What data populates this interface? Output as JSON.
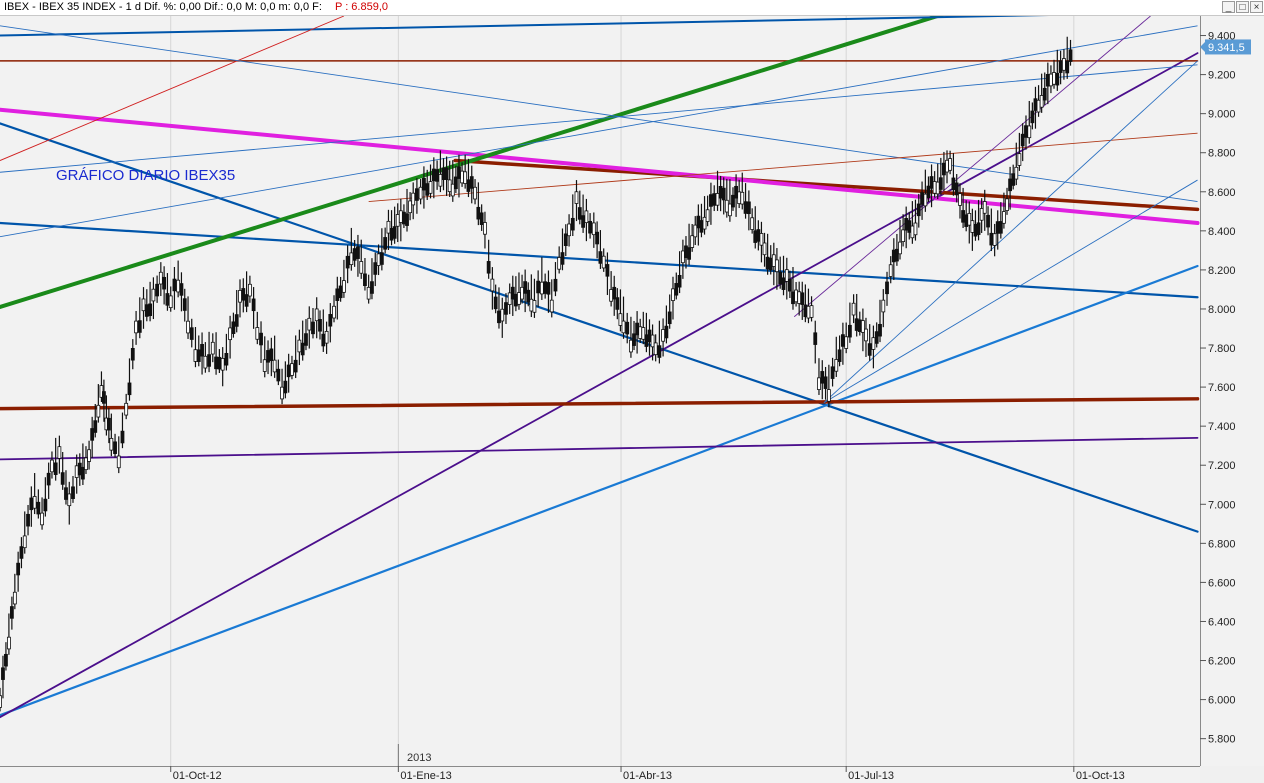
{
  "header": {
    "title": "IBEX - IBEX 35 INDEX - 1 d Dif. %: 0,00  Dif.: 0,0  M: 0,0  m: 0,0  F:",
    "price_label": "P : 6.859,0",
    "buttons": [
      "_",
      "□",
      "×"
    ]
  },
  "chart_data": {
    "type": "candlestick",
    "title": "GRÁFICO DIARIO IBEX35",
    "last_price_label": "9.341,5",
    "last_price": 9341.5,
    "y_ticks": [
      5800,
      6000,
      6200,
      6400,
      6600,
      6800,
      7000,
      7200,
      7400,
      7600,
      7800,
      8000,
      8200,
      8400,
      8600,
      8800,
      9000,
      9200,
      9400
    ],
    "y_tick_labels": [
      "5.800",
      "6.000",
      "6.200",
      "6.400",
      "6.600",
      "6.800",
      "7.000",
      "7.200",
      "7.400",
      "7.600",
      "7.800",
      "8.000",
      "8.200",
      "8.400",
      "8.600",
      "8.800",
      "9.000",
      "9.200",
      "9.400"
    ],
    "ylim": [
      5660,
      9500
    ],
    "x_ticks": [
      {
        "label": "01-Oct-12",
        "date": "2012-10-01"
      },
      {
        "label": "01-Ene-13",
        "date": "2013-01-01"
      },
      {
        "label": "01-Abr-13",
        "date": "2013-04-01"
      },
      {
        "label": "01-Jul-13",
        "date": "2013-07-01"
      },
      {
        "label": "01-Oct-13",
        "date": "2013-10-01"
      }
    ],
    "year_label": "2013",
    "xlim": [
      "2012-07-24",
      "2013-11-21"
    ],
    "series": [
      {
        "values": [
          [
            "2012-07-24",
            6000
          ],
          [
            "2012-07-30",
            6550
          ],
          [
            "2012-08-03",
            6850
          ],
          [
            "2012-08-07",
            7050
          ],
          [
            "2012-08-10",
            6950
          ],
          [
            "2012-08-14",
            7200
          ],
          [
            "2012-08-17",
            7250
          ],
          [
            "2012-08-21",
            7000
          ],
          [
            "2012-08-24",
            7150
          ],
          [
            "2012-08-29",
            7250
          ],
          [
            "2012-09-03",
            7600
          ],
          [
            "2012-09-05",
            7450
          ],
          [
            "2012-09-07",
            7350
          ],
          [
            "2012-09-10",
            7250
          ],
          [
            "2012-09-13",
            7500
          ],
          [
            "2012-09-17",
            7900
          ],
          [
            "2012-09-20",
            8000
          ],
          [
            "2012-09-24",
            8050
          ],
          [
            "2012-09-27",
            8150
          ],
          [
            "2012-10-01",
            8050
          ],
          [
            "2012-10-04",
            8150
          ],
          [
            "2012-10-08",
            7950
          ],
          [
            "2012-10-11",
            7800
          ],
          [
            "2012-10-15",
            7750
          ],
          [
            "2012-10-18",
            7800
          ],
          [
            "2012-10-22",
            7700
          ],
          [
            "2012-10-25",
            7850
          ],
          [
            "2012-10-29",
            8050
          ],
          [
            "2012-11-02",
            8100
          ],
          [
            "2012-11-05",
            7900
          ],
          [
            "2012-11-08",
            7750
          ],
          [
            "2012-11-12",
            7750
          ],
          [
            "2012-11-15",
            7600
          ],
          [
            "2012-11-19",
            7700
          ],
          [
            "2012-11-22",
            7800
          ],
          [
            "2012-11-26",
            7900
          ],
          [
            "2012-11-29",
            7950
          ],
          [
            "2012-12-03",
            7850
          ],
          [
            "2012-12-06",
            8000
          ],
          [
            "2012-12-10",
            8150
          ],
          [
            "2012-12-13",
            8300
          ],
          [
            "2012-12-17",
            8250
          ],
          [
            "2012-12-20",
            8100
          ],
          [
            "2012-12-24",
            8250
          ],
          [
            "2012-12-28",
            8400
          ],
          [
            "2013-01-02",
            8450
          ],
          [
            "2013-01-07",
            8550
          ],
          [
            "2013-01-10",
            8600
          ],
          [
            "2013-01-14",
            8650
          ],
          [
            "2013-01-18",
            8700
          ],
          [
            "2013-01-23",
            8650
          ],
          [
            "2013-01-28",
            8700
          ],
          [
            "2013-02-01",
            8600
          ],
          [
            "2013-02-05",
            8400
          ],
          [
            "2013-02-08",
            8100
          ],
          [
            "2013-02-12",
            7950
          ],
          [
            "2013-02-15",
            8050
          ],
          [
            "2013-02-20",
            8100
          ],
          [
            "2013-02-25",
            8050
          ],
          [
            "2013-02-28",
            8150
          ],
          [
            "2013-03-04",
            8050
          ],
          [
            "2013-03-07",
            8250
          ],
          [
            "2013-03-11",
            8400
          ],
          [
            "2013-03-14",
            8550
          ],
          [
            "2013-03-18",
            8450
          ],
          [
            "2013-03-21",
            8400
          ],
          [
            "2013-03-25",
            8250
          ],
          [
            "2013-03-28",
            8100
          ],
          [
            "2013-04-02",
            7950
          ],
          [
            "2013-04-05",
            7850
          ],
          [
            "2013-04-10",
            7900
          ],
          [
            "2013-04-15",
            7800
          ],
          [
            "2013-04-18",
            7850
          ],
          [
            "2013-04-22",
            8050
          ],
          [
            "2013-04-26",
            8250
          ],
          [
            "2013-05-01",
            8400
          ],
          [
            "2013-05-06",
            8500
          ],
          [
            "2013-05-10",
            8600
          ],
          [
            "2013-05-15",
            8550
          ],
          [
            "2013-05-20",
            8600
          ],
          [
            "2013-05-24",
            8450
          ],
          [
            "2013-05-29",
            8300
          ],
          [
            "2013-06-03",
            8200
          ],
          [
            "2013-06-07",
            8150
          ],
          [
            "2013-06-12",
            8050
          ],
          [
            "2013-06-17",
            8000
          ],
          [
            "2013-06-20",
            7650
          ],
          [
            "2013-06-24",
            7600
          ],
          [
            "2013-06-27",
            7750
          ],
          [
            "2013-07-01",
            7850
          ],
          [
            "2013-07-04",
            8000
          ],
          [
            "2013-07-09",
            7850
          ],
          [
            "2013-07-12",
            7800
          ],
          [
            "2013-07-16",
            8000
          ],
          [
            "2013-07-19",
            8200
          ],
          [
            "2013-07-24",
            8400
          ],
          [
            "2013-07-29",
            8450
          ],
          [
            "2013-08-02",
            8600
          ],
          [
            "2013-08-07",
            8650
          ],
          [
            "2013-08-12",
            8750
          ],
          [
            "2013-08-16",
            8550
          ],
          [
            "2013-08-21",
            8400
          ],
          [
            "2013-08-26",
            8500
          ],
          [
            "2013-08-30",
            8350
          ],
          [
            "2013-09-04",
            8550
          ],
          [
            "2013-09-09",
            8800
          ],
          [
            "2013-09-13",
            8950
          ],
          [
            "2013-09-18",
            9100
          ],
          [
            "2013-09-23",
            9200
          ],
          [
            "2013-09-27",
            9250
          ],
          [
            "2013-10-01",
            9341.5
          ]
        ]
      }
    ],
    "annotation_lines": [
      {
        "color": "#0055aa",
        "from": [
          "2012-07-24",
          8950
        ],
        "to": [
          "2013-11-20",
          6860
        ]
      },
      {
        "color": "#0055aa",
        "from": [
          "2012-07-24",
          8440
        ],
        "to": [
          "2013-11-20",
          8060
        ]
      },
      {
        "color": "#1a7ad4",
        "from": [
          "2012-07-24",
          5920
        ],
        "to": [
          "2013-11-20",
          8220
        ]
      },
      {
        "color": "#4b0f8c",
        "from": [
          "2012-07-24",
          5910
        ],
        "to": [
          "2013-11-20",
          9310
        ]
      },
      {
        "color": "#4b0f8c",
        "from": [
          "2012-07-24",
          7230
        ],
        "to": [
          "2013-11-20",
          7340
        ]
      },
      {
        "color": "#8b1e00",
        "from": [
          "2012-07-24",
          7490
        ],
        "to": [
          "2013-11-20",
          7540
        ]
      },
      {
        "color": "#8b1e00",
        "from": [
          "2013-01-24",
          8760
        ],
        "to": [
          "2013-11-20",
          8510
        ]
      },
      {
        "color": "#8b1e00",
        "from": [
          "2012-07-24",
          9270
        ],
        "to": [
          "2013-11-20",
          9270
        ]
      },
      {
        "color": "#e020e0",
        "from": [
          "2012-07-24",
          9020
        ],
        "to": [
          "2013-11-20",
          8440
        ]
      },
      {
        "color": "#1a8a1a",
        "from": [
          "2012-07-24",
          8010
        ],
        "to": [
          "2013-08-12",
          9520
        ]
      },
      {
        "color": "#0055aa",
        "from": [
          "2012-07-24",
          9400
        ],
        "to": [
          "2013-11-20",
          9520
        ]
      }
    ]
  }
}
